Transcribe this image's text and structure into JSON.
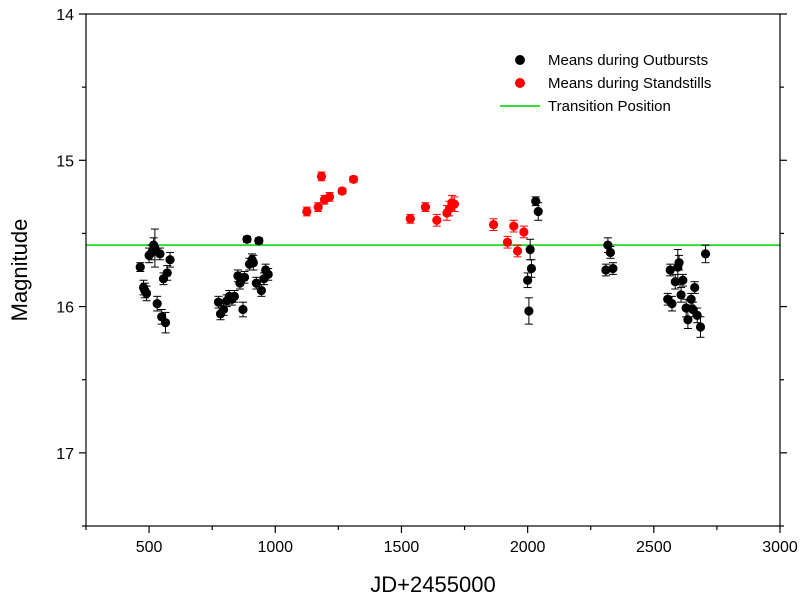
{
  "chart_data": {
    "type": "scatter",
    "xlabel": "JD+2455000",
    "ylabel": "Magnitude",
    "xlim": [
      250,
      3000
    ],
    "ylim": [
      14,
      17.5
    ],
    "y_inverted": true,
    "x_ticks": [
      500,
      1000,
      1500,
      2000,
      2500,
      3000
    ],
    "x_tick_labels": [
      "500",
      "1000",
      "1500",
      "2000",
      "2500",
      "3000"
    ],
    "y_ticks": [
      14,
      15,
      16,
      17
    ],
    "y_tick_labels": [
      "14",
      "15",
      "16",
      "17"
    ],
    "legend_position": "top-right",
    "grid": false,
    "series": [
      {
        "name": "Means during Outbursts",
        "color": "#000000",
        "marker": "circle",
        "points": [
          [
            465,
            15.73,
            0.03
          ],
          [
            478,
            15.87,
            0.05
          ],
          [
            483,
            15.89,
            0.05
          ],
          [
            490,
            15.91,
            0.05
          ],
          [
            500,
            15.65,
            0.05
          ],
          [
            510,
            15.63,
            0.05
          ],
          [
            518,
            15.58,
            0.05
          ],
          [
            523,
            15.6,
            0.13
          ],
          [
            532,
            15.98,
            0.05
          ],
          [
            543,
            15.64,
            0.04
          ],
          [
            550,
            16.07,
            0.05
          ],
          [
            557,
            15.81,
            0.04
          ],
          [
            565,
            16.11,
            0.07
          ],
          [
            572,
            15.77,
            0.05
          ],
          [
            583,
            15.68,
            0.05
          ],
          [
            775,
            15.97,
            0.04
          ],
          [
            783,
            16.05,
            0.04
          ],
          [
            795,
            16.02,
            0.04
          ],
          [
            808,
            15.96,
            0.04
          ],
          [
            818,
            15.93,
            0.04
          ],
          [
            828,
            15.95,
            0.04
          ],
          [
            838,
            15.93,
            0.04
          ],
          [
            852,
            15.79,
            0.04
          ],
          [
            860,
            15.84,
            0.04
          ],
          [
            872,
            16.02,
            0.05
          ],
          [
            878,
            15.8,
            0.04
          ],
          [
            888,
            15.54,
            0.02
          ],
          [
            898,
            15.71,
            0.04
          ],
          [
            908,
            15.68,
            0.04
          ],
          [
            913,
            15.7,
            0.05
          ],
          [
            925,
            15.84,
            0.04
          ],
          [
            935,
            15.55,
            0.02
          ],
          [
            945,
            15.89,
            0.04
          ],
          [
            955,
            15.81,
            0.04
          ],
          [
            962,
            15.75,
            0.04
          ],
          [
            972,
            15.78,
            0.04
          ],
          [
            2000,
            15.82,
            0.05
          ],
          [
            2005,
            16.03,
            0.09
          ],
          [
            2010,
            15.61,
            0.07
          ],
          [
            2015,
            15.74,
            0.06
          ],
          [
            2032,
            15.28,
            0.03
          ],
          [
            2042,
            15.35,
            0.06
          ],
          [
            2310,
            15.75,
            0.04
          ],
          [
            2318,
            15.58,
            0.05
          ],
          [
            2328,
            15.63,
            0.04
          ],
          [
            2338,
            15.74,
            0.04
          ],
          [
            2555,
            15.95,
            0.04
          ],
          [
            2565,
            15.75,
            0.04
          ],
          [
            2572,
            15.98,
            0.05
          ],
          [
            2585,
            15.83,
            0.05
          ],
          [
            2595,
            15.73,
            0.12
          ],
          [
            2600,
            15.7,
            0.05
          ],
          [
            2608,
            15.92,
            0.05
          ],
          [
            2615,
            15.82,
            0.04
          ],
          [
            2628,
            16.01,
            0.06
          ],
          [
            2635,
            16.09,
            0.06
          ],
          [
            2648,
            15.95,
            0.04
          ],
          [
            2655,
            16.02,
            0.05
          ],
          [
            2662,
            15.87,
            0.04
          ],
          [
            2672,
            16.06,
            0.05
          ],
          [
            2685,
            16.14,
            0.07
          ],
          [
            2705,
            15.64,
            0.06
          ]
        ]
      },
      {
        "name": "Means during Standstills",
        "color": "#ff0000",
        "marker": "circle",
        "points": [
          [
            1125,
            15.35,
            0.03
          ],
          [
            1170,
            15.32,
            0.03
          ],
          [
            1183,
            15.11,
            0.03
          ],
          [
            1195,
            15.27,
            0.03
          ],
          [
            1215,
            15.25,
            0.03
          ],
          [
            1265,
            15.21,
            0.02
          ],
          [
            1310,
            15.13,
            0.02
          ],
          [
            1535,
            15.4,
            0.03
          ],
          [
            1595,
            15.32,
            0.03
          ],
          [
            1640,
            15.41,
            0.04
          ],
          [
            1680,
            15.36,
            0.05
          ],
          [
            1690,
            15.33,
            0.05
          ],
          [
            1700,
            15.29,
            0.05
          ],
          [
            1710,
            15.3,
            0.05
          ],
          [
            1865,
            15.44,
            0.04
          ],
          [
            1920,
            15.56,
            0.04
          ],
          [
            1945,
            15.45,
            0.04
          ],
          [
            1960,
            15.62,
            0.04
          ],
          [
            1985,
            15.49,
            0.04
          ]
        ]
      }
    ],
    "reference_lines": [
      {
        "name": "Transition Position",
        "orientation": "horizontal",
        "y": 15.58,
        "color": "#33dd33"
      }
    ]
  }
}
